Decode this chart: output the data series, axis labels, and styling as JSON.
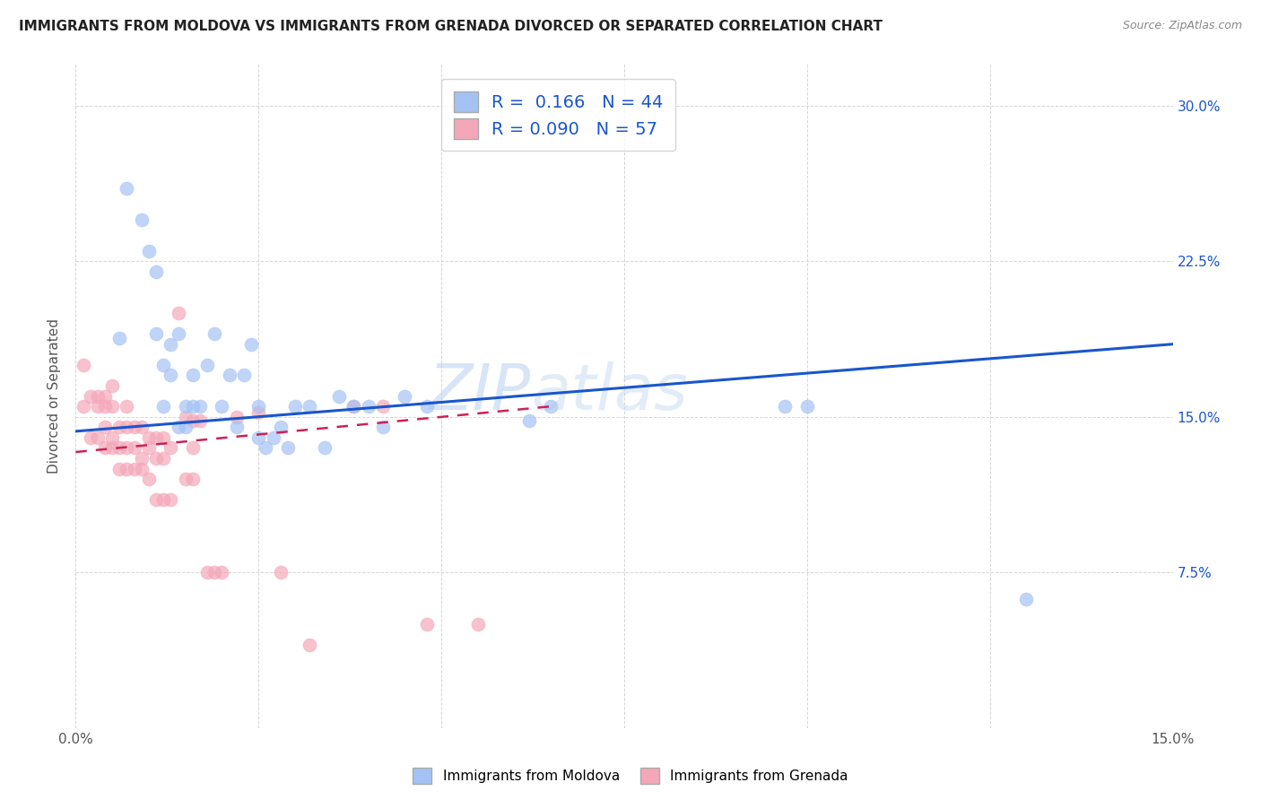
{
  "title": "IMMIGRANTS FROM MOLDOVA VS IMMIGRANTS FROM GRENADA DIVORCED OR SEPARATED CORRELATION CHART",
  "source": "Source: ZipAtlas.com",
  "ylabel": "Divorced or Separated",
  "xlim": [
    0.0,
    0.15
  ],
  "ylim": [
    0.0,
    0.32
  ],
  "ytick_positions": [
    0.0,
    0.075,
    0.15,
    0.225,
    0.3
  ],
  "ytick_labels_right": [
    "",
    "7.5%",
    "15.0%",
    "22.5%",
    "30.0%"
  ],
  "moldova_color": "#a4c2f4",
  "grenada_color": "#f4a7b9",
  "moldova_line_color": "#1a56cc",
  "grenada_line_color": "#cc2255",
  "legend_moldova_R": "0.166",
  "legend_moldova_N": "44",
  "legend_grenada_R": "0.090",
  "legend_grenada_N": "57",
  "moldova_scatter_x": [
    0.006,
    0.007,
    0.009,
    0.01,
    0.011,
    0.011,
    0.012,
    0.012,
    0.013,
    0.013,
    0.014,
    0.014,
    0.015,
    0.015,
    0.016,
    0.016,
    0.017,
    0.018,
    0.019,
    0.02,
    0.021,
    0.022,
    0.023,
    0.024,
    0.025,
    0.025,
    0.026,
    0.027,
    0.028,
    0.029,
    0.03,
    0.032,
    0.034,
    0.036,
    0.038,
    0.04,
    0.042,
    0.045,
    0.048,
    0.062,
    0.065,
    0.097,
    0.1,
    0.13
  ],
  "moldova_scatter_y": [
    0.188,
    0.26,
    0.245,
    0.23,
    0.19,
    0.22,
    0.155,
    0.175,
    0.17,
    0.185,
    0.19,
    0.145,
    0.145,
    0.155,
    0.155,
    0.17,
    0.155,
    0.175,
    0.19,
    0.155,
    0.17,
    0.145,
    0.17,
    0.185,
    0.14,
    0.155,
    0.135,
    0.14,
    0.145,
    0.135,
    0.155,
    0.155,
    0.135,
    0.16,
    0.155,
    0.155,
    0.145,
    0.16,
    0.155,
    0.148,
    0.155,
    0.155,
    0.155,
    0.062
  ],
  "grenada_scatter_x": [
    0.001,
    0.001,
    0.002,
    0.002,
    0.003,
    0.003,
    0.003,
    0.004,
    0.004,
    0.004,
    0.004,
    0.005,
    0.005,
    0.005,
    0.005,
    0.006,
    0.006,
    0.006,
    0.007,
    0.007,
    0.007,
    0.007,
    0.008,
    0.008,
    0.008,
    0.009,
    0.009,
    0.009,
    0.01,
    0.01,
    0.01,
    0.011,
    0.011,
    0.011,
    0.012,
    0.012,
    0.012,
    0.013,
    0.013,
    0.014,
    0.015,
    0.015,
    0.016,
    0.016,
    0.016,
    0.017,
    0.018,
    0.019,
    0.02,
    0.022,
    0.025,
    0.028,
    0.032,
    0.038,
    0.042,
    0.048,
    0.055
  ],
  "grenada_scatter_y": [
    0.155,
    0.175,
    0.14,
    0.16,
    0.14,
    0.155,
    0.16,
    0.135,
    0.145,
    0.155,
    0.16,
    0.135,
    0.14,
    0.155,
    0.165,
    0.125,
    0.135,
    0.145,
    0.125,
    0.135,
    0.145,
    0.155,
    0.125,
    0.135,
    0.145,
    0.125,
    0.13,
    0.145,
    0.12,
    0.135,
    0.14,
    0.11,
    0.13,
    0.14,
    0.11,
    0.13,
    0.14,
    0.11,
    0.135,
    0.2,
    0.12,
    0.15,
    0.12,
    0.135,
    0.148,
    0.148,
    0.075,
    0.075,
    0.075,
    0.15,
    0.152,
    0.075,
    0.04,
    0.155,
    0.155,
    0.05,
    0.05
  ],
  "moldova_trend_x0": 0.0,
  "moldova_trend_x1": 0.15,
  "moldova_trend_y0": 0.143,
  "moldova_trend_y1": 0.185,
  "grenada_trend_x0": 0.0,
  "grenada_trend_x1": 0.065,
  "grenada_trend_y0": 0.133,
  "grenada_trend_y1": 0.155,
  "background_color": "#ffffff",
  "grid_color": "#cccccc"
}
